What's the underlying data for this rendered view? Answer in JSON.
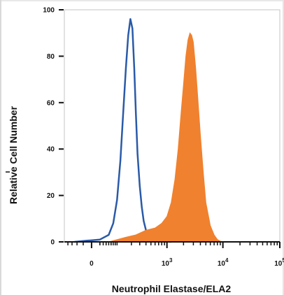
{
  "chart_data": {
    "type": "area",
    "title": "",
    "xlabel": "Neutrophil Elastase/ELA2",
    "ylabel": "Relative Cell Number",
    "x_scale": "biexponential",
    "xlim": [
      -100,
      100000
    ],
    "ylim": [
      0,
      100
    ],
    "grid": false,
    "legend": "none",
    "y_ticks": [
      "0",
      "20",
      "40",
      "60",
      "80",
      "100"
    ],
    "x_ticks": [
      {
        "value": 0,
        "label": "0"
      },
      {
        "value": 1000,
        "label": "10",
        "exp": "3"
      },
      {
        "value": 10000,
        "label": "10",
        "exp": "4"
      },
      {
        "value": 100000,
        "label": "10",
        "exp": "5"
      }
    ],
    "series": [
      {
        "style": "outline",
        "color": "#2a5aa8",
        "x": [
          -50,
          -10,
          20,
          50,
          70,
          90,
          110,
          130,
          150,
          170,
          190,
          210,
          230,
          250,
          270,
          300,
          330,
          360,
          400,
          450,
          520,
          650,
          900,
          1200
        ],
        "y": [
          0,
          0.5,
          1,
          3,
          8,
          18,
          35,
          56,
          75,
          89,
          96,
          92,
          75,
          55,
          38,
          24,
          15,
          9,
          5,
          3,
          1.5,
          0.6,
          0.2,
          0
        ]
      },
      {
        "style": "filled",
        "color": "#f0812e",
        "x": [
          50,
          150,
          250,
          400,
          600,
          800,
          1000,
          1200,
          1400,
          1600,
          1800,
          2000,
          2200,
          2400,
          2600,
          2800,
          3000,
          3300,
          3600,
          4000,
          4500,
          5000,
          6000,
          7000,
          8000,
          9500
        ],
        "y": [
          0,
          2,
          3,
          5,
          6,
          8,
          11,
          17,
          27,
          40,
          55,
          68,
          80,
          87,
          90,
          89,
          86,
          75,
          62,
          46,
          30,
          17,
          7,
          3,
          1,
          0
        ]
      }
    ]
  }
}
